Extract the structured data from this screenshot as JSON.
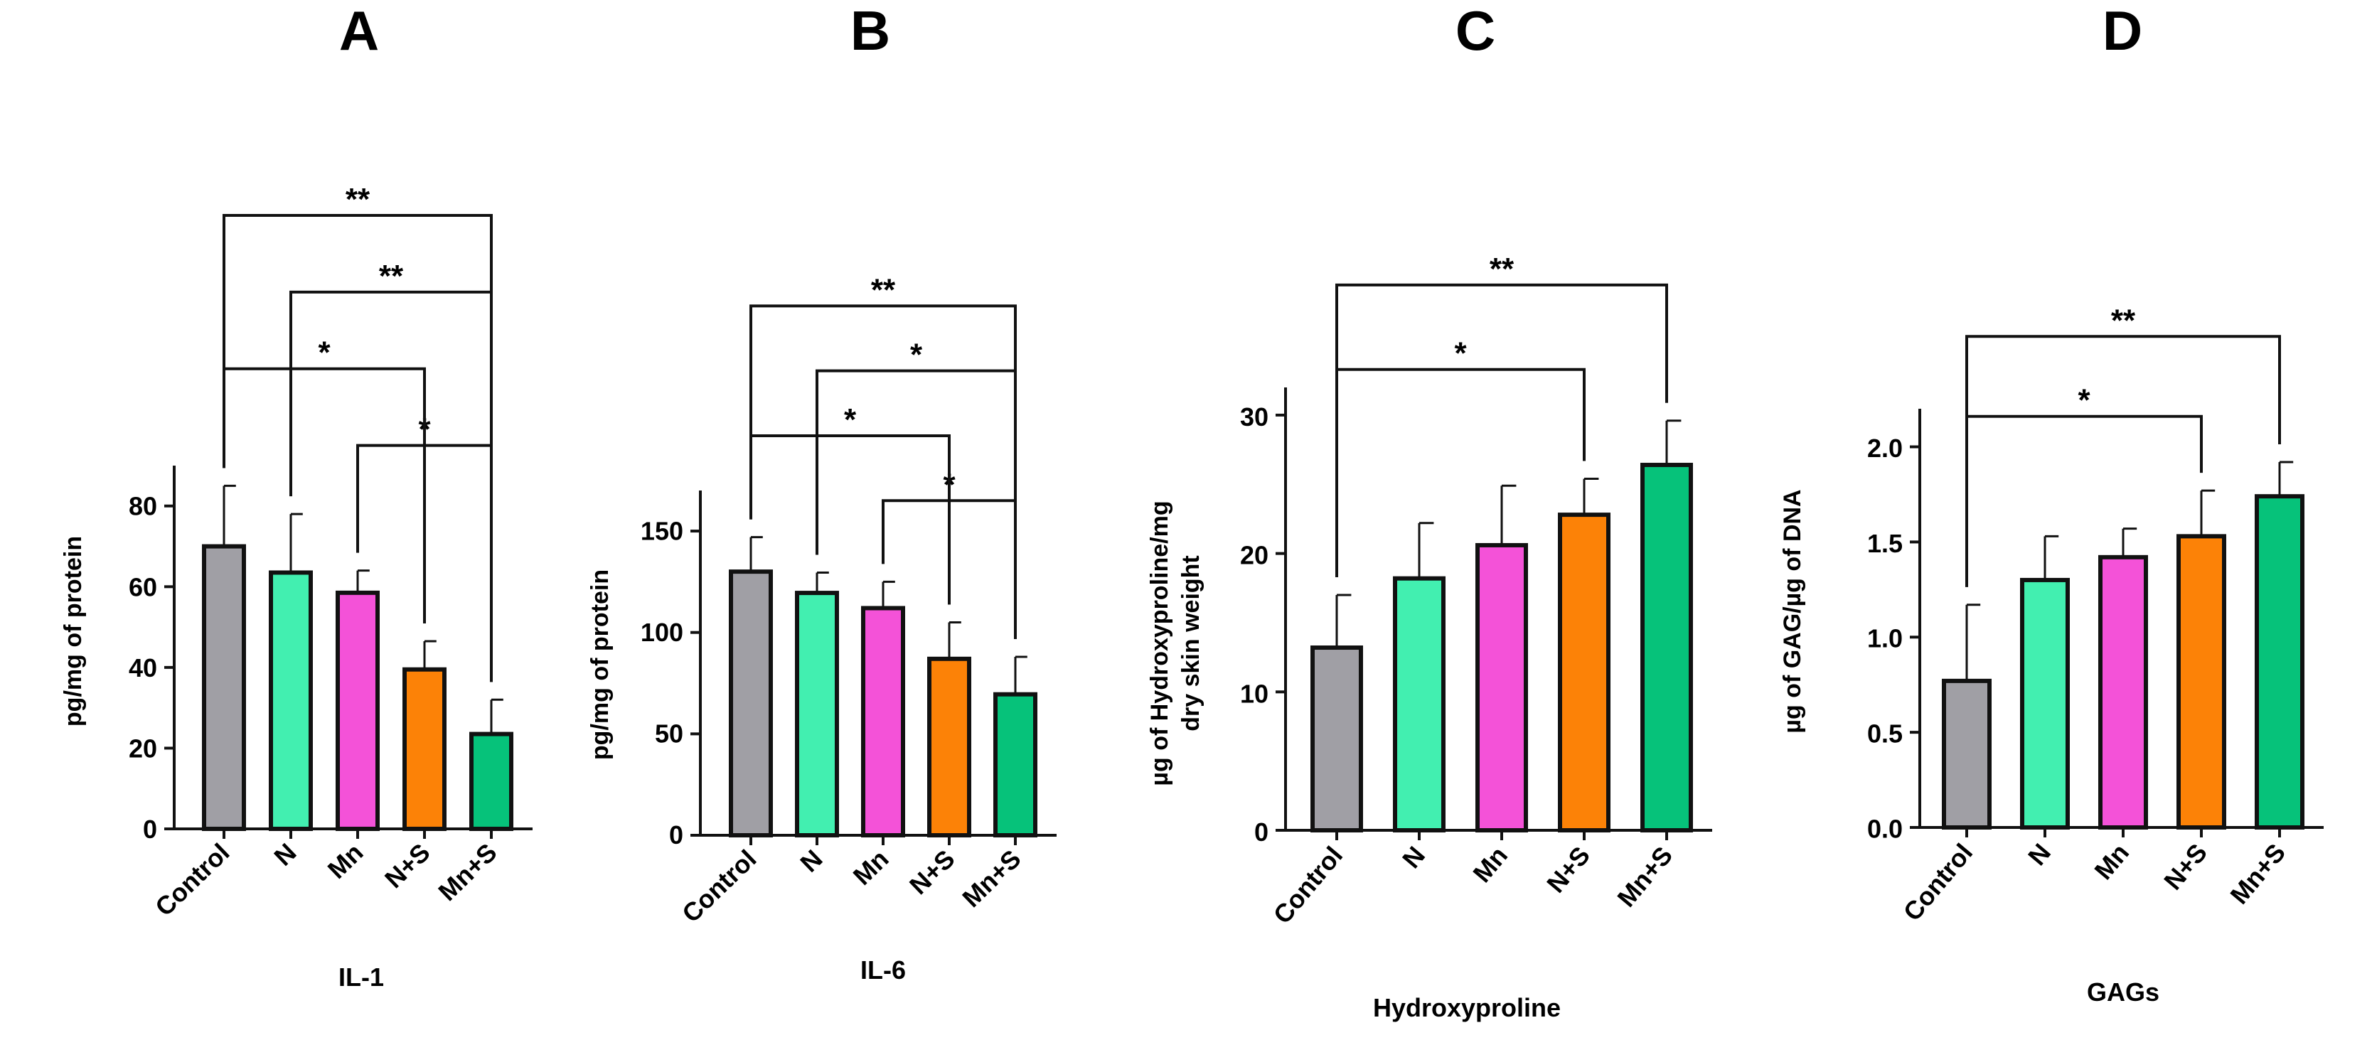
{
  "colors": {
    "Control": "#a09fa5",
    "N": "#42efb0",
    "Mn": "#f452d8",
    "N+S": "#fc8207",
    "Mn+S": "#06c27a",
    "edge": "#111111"
  },
  "chart_data": [
    {
      "type": "bar",
      "panel": "A",
      "title": "",
      "xlabel": "IL-1",
      "ylabel": "pg/mg of protein",
      "categories": [
        "Control",
        "N",
        "Mn",
        "N+S",
        "Mn+S"
      ],
      "values": [
        70,
        63.5,
        58.5,
        39.5,
        23.5
      ],
      "errors": [
        15,
        14.5,
        5.5,
        7,
        8.5
      ],
      "ylim": [
        0,
        90
      ],
      "yticks": [
        0,
        20,
        40,
        60,
        80
      ],
      "tick_labels": [
        "0",
        "20",
        "40",
        "60",
        "80"
      ],
      "significance": [
        {
          "from": 2,
          "to": 4,
          "level": 95,
          "label": "*"
        },
        {
          "from": 0,
          "to": 3,
          "level": 114,
          "label": "*"
        },
        {
          "from": 1,
          "to": 4,
          "level": 133,
          "label": "**"
        },
        {
          "from": 0,
          "to": 4,
          "level": 152,
          "label": "**"
        }
      ]
    },
    {
      "type": "bar",
      "panel": "B",
      "title": "",
      "xlabel": "IL-6",
      "ylabel": "pg/mg of protein",
      "categories": [
        "Control",
        "N",
        "Mn",
        "N+S",
        "Mn+S"
      ],
      "values": [
        130,
        119.5,
        112,
        87,
        69.5
      ],
      "errors": [
        17,
        10,
        13,
        18,
        18.5
      ],
      "ylim": [
        0,
        170
      ],
      "yticks": [
        0,
        50,
        100,
        150
      ],
      "tick_labels": [
        "0",
        "50",
        "100",
        "150"
      ],
      "significance": [
        {
          "from": 2,
          "to": 4,
          "level": 165,
          "label": "*"
        },
        {
          "from": 0,
          "to": 3,
          "level": 197,
          "label": "*"
        },
        {
          "from": 1,
          "to": 4,
          "level": 229,
          "label": "*"
        },
        {
          "from": 0,
          "to": 4,
          "level": 261,
          "label": "**"
        }
      ]
    },
    {
      "type": "bar",
      "panel": "C",
      "title": "",
      "xlabel": "Hydroxyproline",
      "ylabel": [
        "µg of Hydroxyproline/mg",
        "dry skin weight"
      ],
      "categories": [
        "Control",
        "N",
        "Mn",
        "N+S",
        "Mn+S"
      ],
      "values": [
        13.2,
        18.2,
        20.6,
        22.8,
        26.4
      ],
      "errors": [
        3.8,
        4.0,
        4.3,
        2.6,
        3.2
      ],
      "ylim": [
        0,
        32
      ],
      "yticks": [
        0,
        10,
        20,
        30
      ],
      "tick_labels": [
        "0",
        "10",
        "20",
        "30"
      ],
      "significance": [
        {
          "from": 0,
          "to": 3,
          "level": 33.3,
          "label": "*"
        },
        {
          "from": 0,
          "to": 4,
          "level": 39.4,
          "label": "**"
        }
      ]
    },
    {
      "type": "bar",
      "panel": "D",
      "title": "",
      "xlabel": "GAGs",
      "ylabel": "µg of GAG/µg of DNA",
      "categories": [
        "Control",
        "N",
        "Mn",
        "N+S",
        "Mn+S"
      ],
      "values": [
        0.77,
        1.3,
        1.42,
        1.53,
        1.74
      ],
      "errors": [
        0.4,
        0.23,
        0.15,
        0.24,
        0.18
      ],
      "ylim": [
        0,
        2.2
      ],
      "yticks": [
        0,
        0.5,
        1.0,
        1.5,
        2.0
      ],
      "tick_labels": [
        "0.0",
        "0.5",
        "1.0",
        "1.5",
        "2.0"
      ],
      "significance": [
        {
          "from": 0,
          "to": 3,
          "level": 2.16,
          "label": "*"
        },
        {
          "from": 0,
          "to": 4,
          "level": 2.58,
          "label": "**"
        }
      ]
    }
  ]
}
